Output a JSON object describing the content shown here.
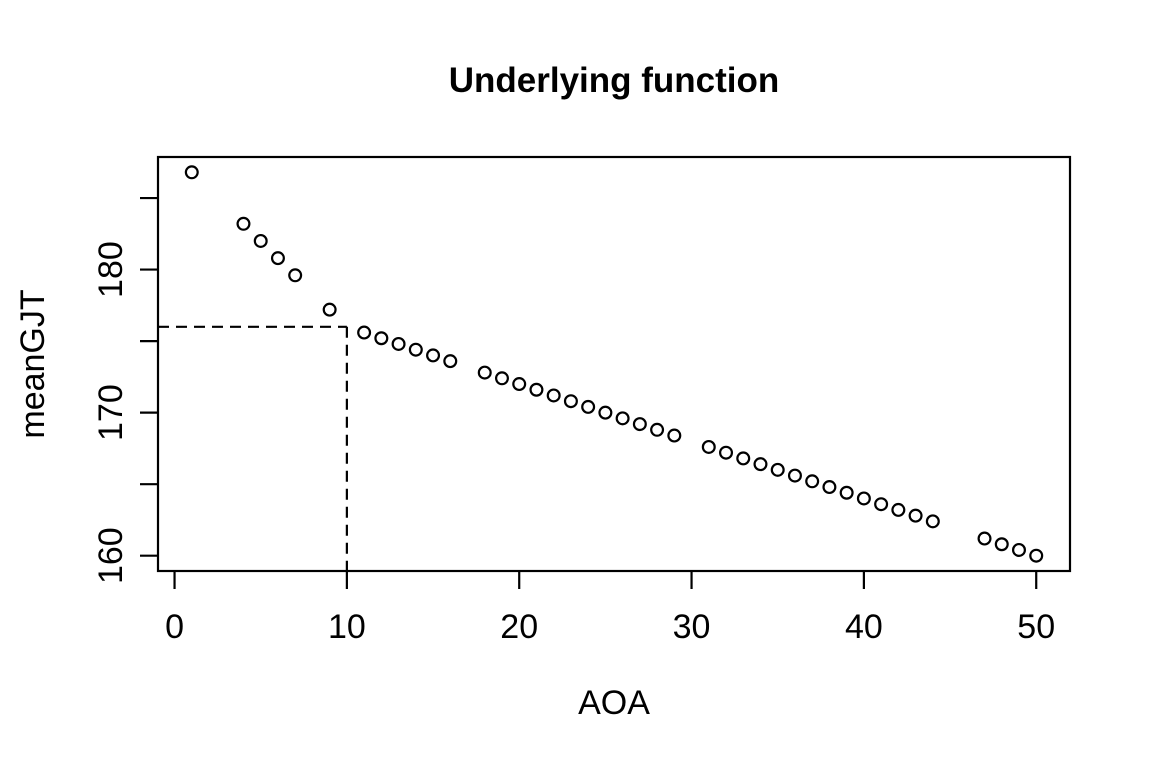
{
  "figure": {
    "background": "#ffffff",
    "foreground": "#000000"
  },
  "chart_data": {
    "type": "scatter",
    "title": "Underlying function",
    "xlabel": "AOA",
    "ylabel": "meanGJT",
    "xlim": [
      -0.96,
      51.96
    ],
    "ylim": [
      158.93,
      187.87
    ],
    "grid": false,
    "legend": "none",
    "x_ticks": [
      {
        "value": 0,
        "label": "0"
      },
      {
        "value": 10,
        "label": "10"
      },
      {
        "value": 20,
        "label": "20"
      },
      {
        "value": 30,
        "label": "30"
      },
      {
        "value": 40,
        "label": "40"
      },
      {
        "value": 50,
        "label": "50"
      }
    ],
    "y_ticks": [
      {
        "value": 160,
        "label": "160"
      },
      {
        "value": 165,
        "label": ""
      },
      {
        "value": 170,
        "label": "170"
      },
      {
        "value": 175,
        "label": ""
      },
      {
        "value": 180,
        "label": "180"
      },
      {
        "value": 185,
        "label": ""
      }
    ],
    "reference_lines": {
      "style": "dashed",
      "x": 10,
      "y": 176,
      "description": "horizontal dashed segment from left axis to x=10 at y=176, vertical dashed segment from y=176 down to bottom axis at x=10"
    },
    "marker": {
      "shape": "open-circle",
      "radius_px": 5.9,
      "stroke": "#000000",
      "stroke_width_px": 2.2,
      "fill": "none"
    },
    "series": [
      {
        "name": "underlying function points",
        "x": [
          1,
          4,
          5,
          6,
          7,
          9,
          11,
          12,
          13,
          14,
          15,
          16,
          18,
          19,
          20,
          21,
          22,
          23,
          24,
          25,
          26,
          27,
          28,
          29,
          31,
          32,
          33,
          34,
          35,
          36,
          37,
          38,
          39,
          40,
          41,
          42,
          43,
          44,
          47,
          48,
          49,
          50
        ],
        "y": [
          186.8,
          183.2,
          182.0,
          180.8,
          179.6,
          177.2,
          175.6,
          175.2,
          174.8,
          174.4,
          174.0,
          173.6,
          172.8,
          172.4,
          172.0,
          171.6,
          171.2,
          170.8,
          170.4,
          170.0,
          169.6,
          169.2,
          168.8,
          168.4,
          167.6,
          167.2,
          166.8,
          166.4,
          166.0,
          165.6,
          165.2,
          164.8,
          164.4,
          164.0,
          163.6,
          163.2,
          162.8,
          162.4,
          161.2,
          160.8,
          160.4,
          160.0
        ]
      }
    ]
  }
}
